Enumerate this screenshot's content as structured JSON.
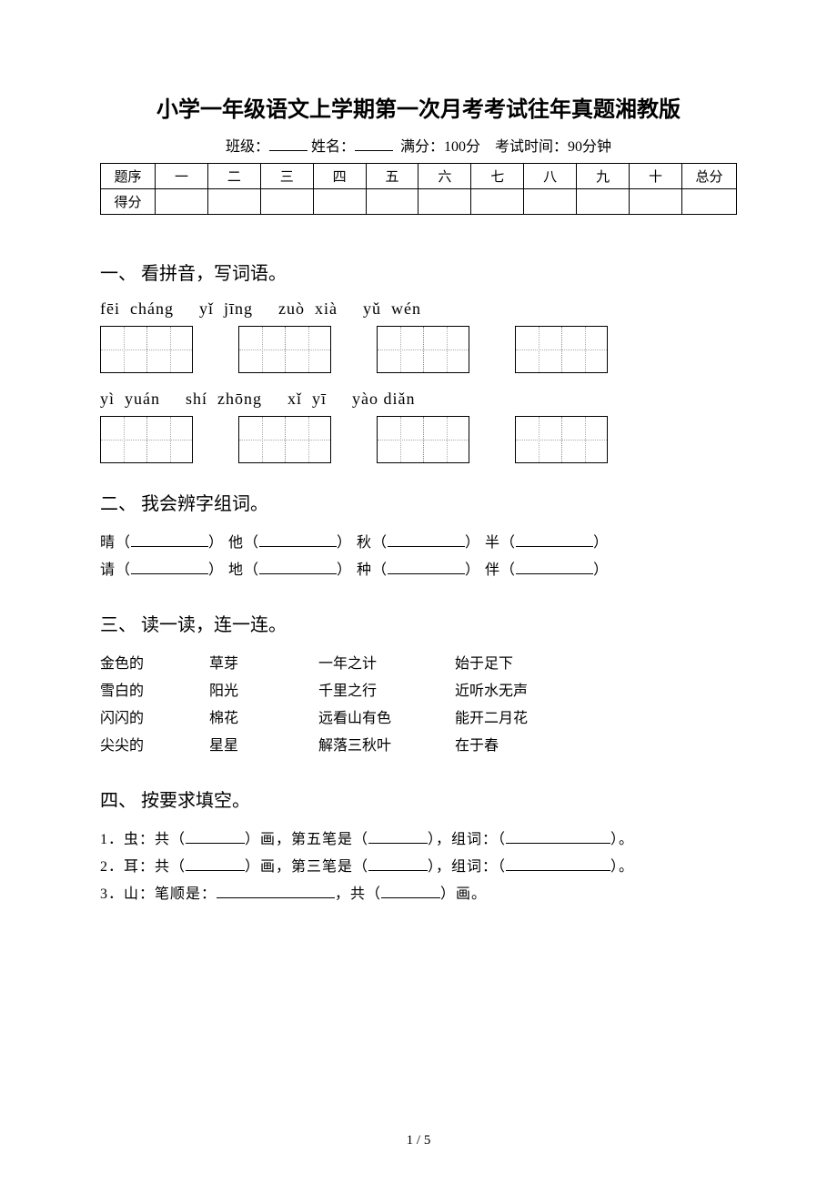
{
  "title": "小学一年级语文上学期第一次月考考试往年真题湘教版",
  "meta": {
    "class_label": "班级：",
    "name_label": "姓名：",
    "full_score_label": "满分：",
    "full_score_value": "100分",
    "time_label": "考试时间：",
    "time_value": "90分钟"
  },
  "score_table": {
    "row1_head": "题序",
    "row1_cells": [
      "一",
      "二",
      "三",
      "四",
      "五",
      "六",
      "七",
      "八",
      "九",
      "十",
      "总分"
    ],
    "row2_head": "得分"
  },
  "section1": {
    "heading": "一、 看拼音，写词语。",
    "pinyin_rows": [
      [
        "fēi  cháng",
        "yǐ  jīng",
        "zuò  xià",
        "yǔ  wén"
      ],
      [
        "yì  yuán",
        "shí  zhōng",
        "xǐ  yī",
        "yào diǎn"
      ]
    ]
  },
  "section2": {
    "heading": "二、 我会辨字组词。",
    "line1": {
      "c1": "晴（",
      "c2": "） 他（",
      "c3": "） 秋（",
      "c4": "） 半（",
      "c5": "）"
    },
    "line2": {
      "c1": "请（",
      "c2": "） 地（",
      "c3": "） 种（",
      "c4": "） 伴（",
      "c5": "）"
    },
    "blank_width": 85
  },
  "section3": {
    "heading": "三、 读一读，连一连。",
    "rows": [
      [
        "金色的",
        "草芽",
        "一年之计",
        "始于足下"
      ],
      [
        "雪白的",
        "阳光",
        "千里之行",
        "近听水无声"
      ],
      [
        "闪闪的",
        "棉花",
        "远看山有色",
        "  能开二月花"
      ],
      [
        "尖尖的",
        "星星",
        "解落三秋叶",
        "在于春"
      ]
    ]
  },
  "section4": {
    "heading": "四、 按要求填空。",
    "lines": [
      {
        "pre": "1．虫：共（",
        "w1": 65,
        "mid1": "）画，第五笔是（",
        "w2": 65,
        "mid2": "），组词：（",
        "w3": 115,
        "end": "）。"
      },
      {
        "pre": "2．耳：共（",
        "w1": 65,
        "mid1": "）画，第三笔是（",
        "w2": 65,
        "mid2": "），组词：（",
        "w3": 115,
        "end": "）。"
      },
      {
        "pre": "3．山：笔顺是：",
        "w1": 130,
        "mid1": "，共（",
        "w2": 65,
        "mid2": "）画。",
        "w3": 0,
        "end": ""
      }
    ]
  },
  "footer": "1 / 5"
}
